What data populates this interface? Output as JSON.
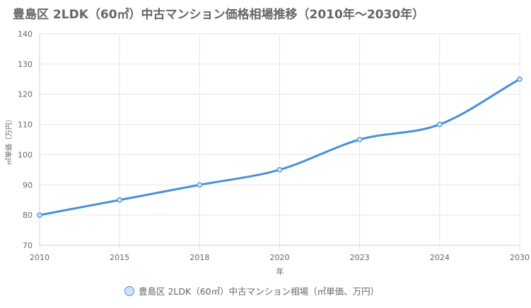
{
  "chart_data": {
    "type": "line",
    "title": "豊島区 2LDK（60㎡）中古マンション価格相場推移（2010年〜2030年）",
    "xlabel": "年",
    "ylabel": "㎡単価（万円）",
    "categories": [
      "2010",
      "2015",
      "2018",
      "2020",
      "2023",
      "2024",
      "2030"
    ],
    "series": [
      {
        "name": "豊島区 2LDK（60㎡）中古マンション相場（㎡単価、万円）",
        "values": [
          80,
          85,
          90,
          95,
          105,
          110,
          125
        ],
        "color": "#4a90d9"
      }
    ],
    "ylim": [
      70,
      140
    ],
    "yticks": [
      70,
      80,
      90,
      100,
      110,
      120,
      130,
      140
    ],
    "grid": true,
    "legend_position": "bottom"
  }
}
